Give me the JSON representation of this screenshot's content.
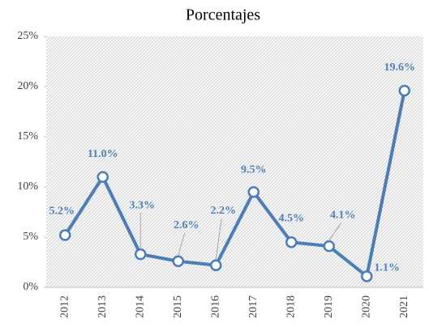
{
  "chart_data": {
    "type": "line",
    "title": "Porcentajes",
    "categories": [
      "2012",
      "2013",
      "2014",
      "2015",
      "2016",
      "2017",
      "2018",
      "2019",
      "2020",
      "2021"
    ],
    "series": [
      {
        "name": "Porcentajes",
        "color": "#4a7ebb",
        "values": [
          5.2,
          11.0,
          3.3,
          2.6,
          2.2,
          9.5,
          4.5,
          4.1,
          1.1,
          19.6
        ],
        "value_labels": [
          "5.2%",
          "11.0%",
          "3.3%",
          "2.6%",
          "2.2%",
          "9.5%",
          "4.5%",
          "4.1%",
          "1.1%",
          "19.6%"
        ]
      }
    ],
    "ylim": [
      0,
      25
    ],
    "yticks": [
      {
        "value": 0,
        "label": "0%"
      },
      {
        "value": 5,
        "label": "5%"
      },
      {
        "value": 10,
        "label": "10%"
      },
      {
        "value": 15,
        "label": "15%"
      },
      {
        "value": 20,
        "label": "20%"
      },
      {
        "value": 25,
        "label": "25%"
      }
    ],
    "grid": false
  }
}
